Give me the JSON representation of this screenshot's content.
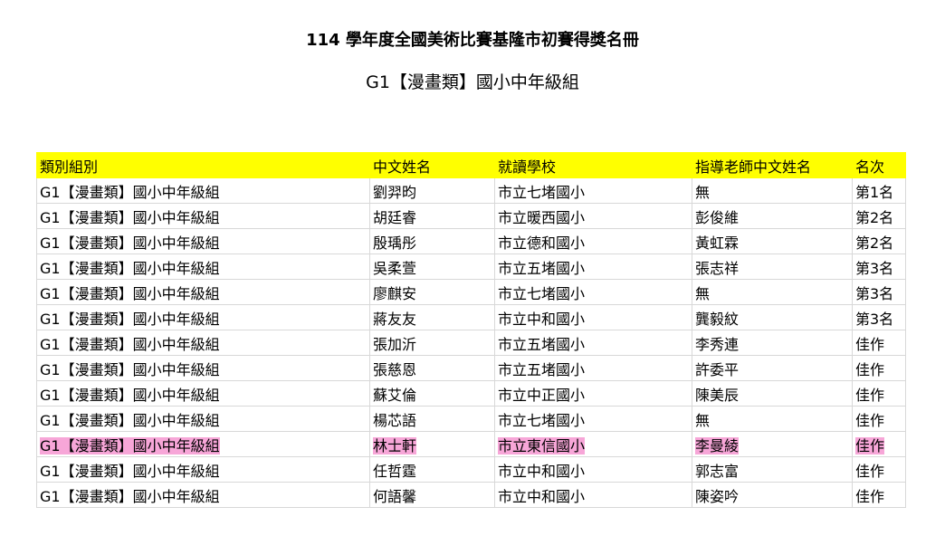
{
  "title": "114 學年度全國美術比賽基隆市初賽得獎名冊",
  "subtitle": "G1【漫畫類】國小中年級組",
  "highlight_color": "#f7a6d8",
  "header_color": "#ffff00",
  "table": {
    "headers": [
      "類別組別",
      "中文姓名",
      "就讀學校",
      "指導老師中文姓名",
      "名次"
    ],
    "rows": [
      [
        "G1【漫畫類】國小中年級組",
        "劉羿昀",
        "市立七堵國小",
        "無",
        "第1名"
      ],
      [
        "G1【漫畫類】國小中年級組",
        "胡廷睿",
        "市立暖西國小",
        "彭俊維",
        "第2名"
      ],
      [
        "G1【漫畫類】國小中年級組",
        "殷瑀彤",
        "市立德和國小",
        "黃虹霖",
        "第2名"
      ],
      [
        "G1【漫畫類】國小中年級組",
        "吳柔萱",
        "市立五堵國小",
        "張志祥",
        "第3名"
      ],
      [
        "G1【漫畫類】國小中年級組",
        "廖麒安",
        "市立七堵國小",
        "無",
        "第3名"
      ],
      [
        "G1【漫畫類】國小中年級組",
        "蔣友友",
        "市立中和國小",
        "龔毅紋",
        "第3名"
      ],
      [
        "G1【漫畫類】國小中年級組",
        "張加沂",
        "市立五堵國小",
        "李秀連",
        "佳作"
      ],
      [
        "G1【漫畫類】國小中年級組",
        "張慈恩",
        "市立五堵國小",
        "許委平",
        "佳作"
      ],
      [
        "G1【漫畫類】國小中年級組",
        "蘇艾倫",
        "市立中正國小",
        "陳美辰",
        "佳作"
      ],
      [
        "G1【漫畫類】國小中年級組",
        "楊芯語",
        "市立七堵國小",
        "無",
        "佳作"
      ],
      [
        "G1【漫畫類】國小中年級組",
        "林士軒",
        "市立東信國小",
        "李曼綾",
        "佳作"
      ],
      [
        "G1【漫畫類】國小中年級組",
        "任哲霆",
        "市立中和國小",
        "郭志富",
        "佳作"
      ],
      [
        "G1【漫畫類】國小中年級組",
        "何語馨",
        "市立中和國小",
        "陳姿吟",
        "佳作"
      ]
    ],
    "highlighted_row": 10
  }
}
